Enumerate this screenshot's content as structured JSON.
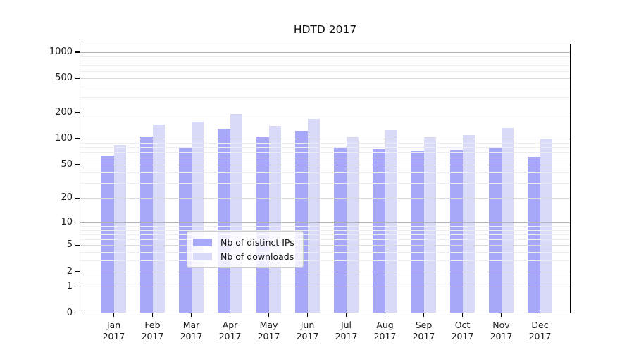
{
  "chart_data": {
    "type": "bar",
    "title": "HDTD 2017",
    "categories": [
      {
        "label": "Jan",
        "sublabel": "2017"
      },
      {
        "label": "Feb",
        "sublabel": "2017"
      },
      {
        "label": "Mar",
        "sublabel": "2017"
      },
      {
        "label": "Apr",
        "sublabel": "2017"
      },
      {
        "label": "May",
        "sublabel": "2017"
      },
      {
        "label": "Jun",
        "sublabel": "2017"
      },
      {
        "label": "Jul",
        "sublabel": "2017"
      },
      {
        "label": "Aug",
        "sublabel": "2017"
      },
      {
        "label": "Sep",
        "sublabel": "2017"
      },
      {
        "label": "Oct",
        "sublabel": "2017"
      },
      {
        "label": "Nov",
        "sublabel": "2017"
      },
      {
        "label": "Dec",
        "sublabel": "2017"
      }
    ],
    "series": [
      {
        "name": "Nb of distinct IPs",
        "color": "#a8a8f8",
        "values": [
          63,
          105,
          78,
          130,
          104,
          123,
          80,
          76,
          73,
          74,
          78,
          61
        ]
      },
      {
        "name": "Nb of downloads",
        "color": "#d9d9f8",
        "values": [
          84,
          145,
          156,
          192,
          141,
          170,
          103,
          127,
          104,
          109,
          132,
          98
        ]
      }
    ],
    "y_axis": {
      "scale": "log1p",
      "ticks": [
        0,
        1,
        2,
        5,
        10,
        20,
        50,
        100,
        200,
        500,
        1000
      ],
      "minor_ticks": [
        3,
        4,
        6,
        7,
        8,
        9,
        30,
        40,
        60,
        70,
        80,
        90,
        300,
        400,
        600,
        700,
        800,
        900
      ]
    },
    "legend_position": "lower center",
    "colors": {
      "grid_power10": "#b2b2b6",
      "grid_major": "#dadadd",
      "grid_minor": "#ededf1",
      "axis": "#000000",
      "text": "#1a1a1a"
    }
  }
}
